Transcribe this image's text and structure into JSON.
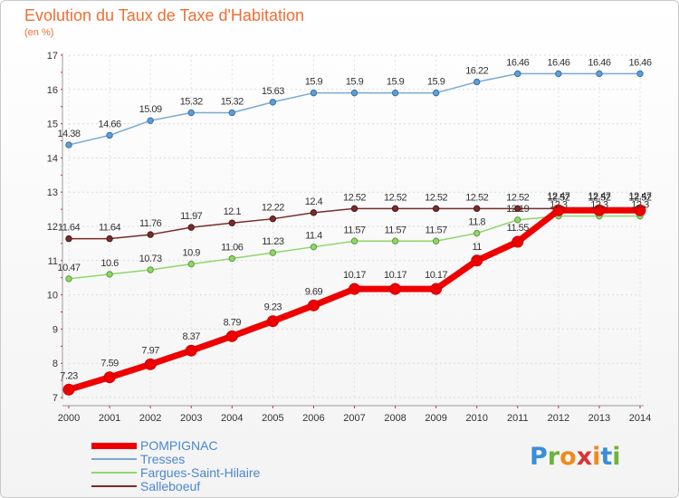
{
  "title": "Evolution du Taux de Taxe d'Habitation",
  "subtitle": "(en %)",
  "logo": {
    "text": "Proxiti",
    "letter_colors": [
      "#3b8ed6",
      "#6fb33b",
      "#f08a1c",
      "#d93434",
      "#f08a1c",
      "#3b8ed6",
      "#6fb33b"
    ]
  },
  "chart_data": {
    "type": "line",
    "title": "Evolution du Taux de Taxe d'Habitation",
    "ylabel": "(en %)",
    "xlabel": "",
    "x": [
      "2000",
      "2001",
      "2002",
      "2003",
      "2004",
      "2005",
      "2006",
      "2007",
      "2008",
      "2009",
      "2010",
      "2011",
      "2012",
      "2013",
      "2014"
    ],
    "ylim": [
      7,
      17
    ],
    "yticks": [
      "7",
      "8",
      "9",
      "10",
      "11",
      "12",
      "13",
      "14",
      "15",
      "16",
      "17"
    ],
    "grid": true,
    "legend": "bottom-left",
    "series": [
      {
        "name": "POMPIGNAC",
        "color": "#ee0000",
        "values": [
          7.23,
          7.59,
          7.97,
          8.37,
          8.79,
          9.23,
          9.69,
          10.17,
          10.17,
          10.17,
          11,
          11.55,
          12.47,
          12.47,
          12.47
        ],
        "labels": [
          "7.23",
          "7.59",
          "7.97",
          "8.37",
          "8.79",
          "9.23",
          "9.69",
          "10.17",
          "10.17",
          "10.17",
          "11",
          "11.55",
          "12.47",
          "12.47",
          "12.47"
        ]
      },
      {
        "name": "Tresses",
        "color": "#79a9d6",
        "values": [
          14.38,
          14.66,
          15.09,
          15.32,
          15.32,
          15.63,
          15.9,
          15.9,
          15.9,
          15.9,
          16.22,
          16.46,
          16.46,
          16.46,
          16.46
        ],
        "labels": [
          "14.38",
          "14.66",
          "15.09",
          "15.32",
          "15.32",
          "15.63",
          "15.9",
          "15.9",
          "15.9",
          "15.9",
          "16.22",
          "16.46",
          "16.46",
          "16.46",
          "16.46"
        ]
      },
      {
        "name": "Fargues-Saint-Hilaire",
        "color": "#8ed66a",
        "values": [
          10.47,
          10.6,
          10.73,
          10.9,
          11.06,
          11.23,
          11.4,
          11.57,
          11.57,
          11.57,
          11.8,
          12.19,
          12.3,
          12.3,
          12.3
        ],
        "labels": [
          "10.47",
          "10.6",
          "10.73",
          "10.9",
          "11.06",
          "11.23",
          "11.4",
          "11.57",
          "11.57",
          "11.57",
          "11.8",
          "12.19",
          "12.3",
          "12.3",
          "12.3"
        ]
      },
      {
        "name": "Salleboeuf",
        "color": "#7a2b2b",
        "values": [
          11.64,
          11.64,
          11.76,
          11.97,
          12.1,
          12.22,
          12.4,
          12.52,
          12.52,
          12.52,
          12.52,
          12.52,
          12.52,
          12.52,
          12.52
        ],
        "labels": [
          "11.64",
          "11.64",
          "11.76",
          "11.97",
          "12.1",
          "12.22",
          "12.4",
          "12.52",
          "12.52",
          "12.52",
          "12.52",
          "12.52",
          "12.52",
          "12.52",
          "12.52"
        ]
      }
    ]
  }
}
